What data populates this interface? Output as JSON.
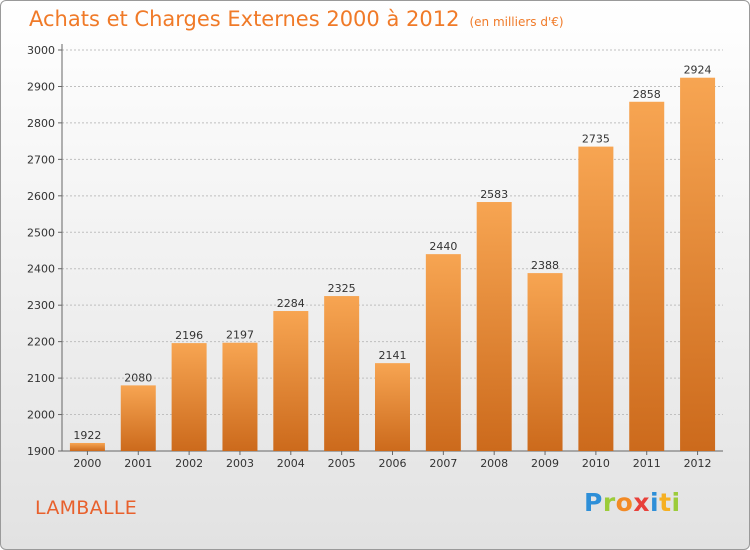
{
  "header": {
    "title": "Achats et Charges Externes 2000 à 2012",
    "subtitle": "(en milliers d'€)"
  },
  "footer": {
    "city": "LAMBALLE",
    "logo_letters": [
      "P",
      "r",
      "o",
      "x",
      "i",
      "t",
      "i"
    ],
    "logo_colors": [
      "#2e8fd8",
      "#9ccc3a",
      "#f28a25",
      "#e8403a",
      "#2e8fd8",
      "#f6b022",
      "#9ccc3a"
    ]
  },
  "colors": {
    "bar_light": "#f7a552",
    "bar_dark": "#cc6a1c",
    "title": "#f07a28",
    "grid": "#bfbfbf"
  },
  "chart_data": {
    "type": "bar",
    "categories": [
      "2000",
      "2001",
      "2002",
      "2003",
      "2004",
      "2005",
      "2006",
      "2007",
      "2008",
      "2009",
      "2010",
      "2011",
      "2012"
    ],
    "values": [
      1922,
      2080,
      2196,
      2197,
      2284,
      2325,
      2141,
      2440,
      2583,
      2388,
      2735,
      2858,
      2924
    ],
    "data_labels": [
      "1922",
      "2080",
      "2196",
      "2197",
      "2284",
      "2325",
      "2141",
      "2440",
      "2583",
      "2388",
      "2735",
      "2858",
      "2924"
    ],
    "yticks": [
      "1900",
      "2000",
      "2100",
      "2200",
      "2300",
      "2400",
      "2500",
      "2600",
      "2700",
      "2800",
      "2900",
      "3000"
    ],
    "ylim": [
      1900,
      3000
    ],
    "title": "Achats et Charges Externes 2000 à 2012",
    "xlabel": "",
    "ylabel": "",
    "grid": true,
    "legend": "none"
  }
}
